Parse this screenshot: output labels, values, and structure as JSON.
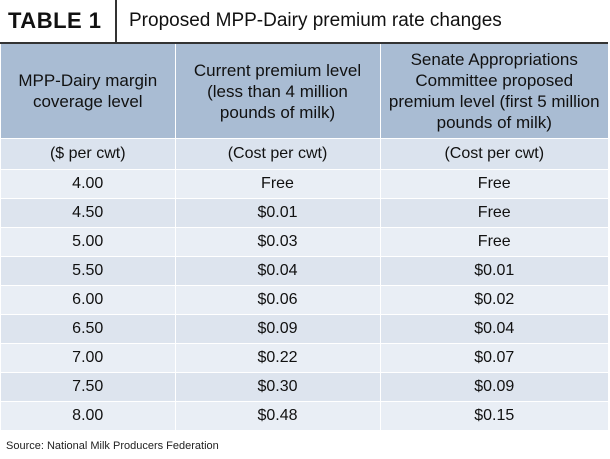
{
  "table": {
    "label": "TABLE 1",
    "title": "Proposed MPP-Dairy premium rate changes",
    "headers": [
      "MPP-Dairy margin coverage level",
      "Current premium level (less than 4 million pounds of milk)",
      "Senate Appropriations Committee proposed premium level (first 5 million pounds of milk)"
    ],
    "units": [
      "($ per cwt)",
      "(Cost per cwt)",
      "(Cost per cwt)"
    ],
    "rows": [
      [
        "4.00",
        "Free",
        "Free"
      ],
      [
        "4.50",
        "$0.01",
        "Free"
      ],
      [
        "5.00",
        "$0.03",
        "Free"
      ],
      [
        "5.50",
        "$0.04",
        "$0.01"
      ],
      [
        "6.00",
        "$0.06",
        "$0.02"
      ],
      [
        "6.50",
        "$0.09",
        "$0.04"
      ],
      [
        "7.00",
        "$0.22",
        "$0.07"
      ],
      [
        "7.50",
        "$0.30",
        "$0.09"
      ],
      [
        "8.00",
        "$0.48",
        "$0.15"
      ]
    ],
    "source": "Source: National Milk Producers Federation"
  }
}
